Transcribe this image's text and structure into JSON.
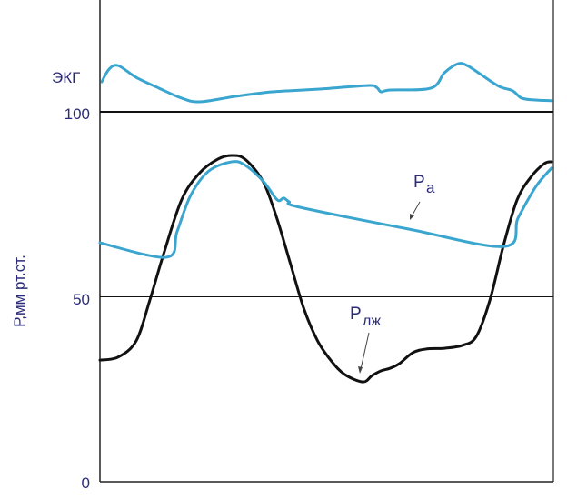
{
  "chart_data": {
    "type": "line",
    "title": "",
    "xlabel": "",
    "ylabel": "Р,мм рт.ст.",
    "ylim": [
      0,
      100
    ],
    "yticks": [
      "0",
      "50",
      "100"
    ],
    "ecg_label": "ЭКГ",
    "grid": "horizontal lines at 50 and 100",
    "colors": {
      "ecg": "#3aa6cf",
      "pa": "#3aa6cf",
      "plv": "#111111",
      "text": "#2b2b78"
    },
    "series": [
      {
        "name": "ЭКГ",
        "x": [
          0.4,
          2,
          4,
          8,
          13,
          18,
          22,
          30,
          38,
          48,
          59,
          61,
          62,
          64,
          73,
          76,
          79,
          81,
          84,
          88,
          91,
          93,
          96,
          99.6
        ],
        "y": [
          108.1,
          111.5,
          112.5,
          109.3,
          106.4,
          103.7,
          102.7,
          104.2,
          105.4,
          106.1,
          107.1,
          106.6,
          105.4,
          105.9,
          106.4,
          110.6,
          113.0,
          112.5,
          110.1,
          106.9,
          105.7,
          103.7,
          103.2,
          103.0
        ]
      },
      {
        "name": "Pa",
        "label_main": "P",
        "label_sub": "a",
        "x": [
          0,
          14.7,
          17.0,
          20.0,
          24.0,
          29.1,
          32.1,
          36.1,
          39.1,
          40.5,
          41.7,
          44.1,
          68.1,
          89.2,
          92.2,
          96.2,
          99.6
        ],
        "y": [
          64.6,
          60.7,
          67.6,
          77.4,
          84.0,
          86.5,
          85.5,
          81.1,
          76.2,
          76.7,
          75.7,
          74.2,
          68.3,
          63.6,
          71.3,
          79.9,
          84.8
        ]
      },
      {
        "name": "Pлж",
        "label_main": "P",
        "label_sub": "лж",
        "x": [
          0,
          4,
          8,
          11,
          14,
          18,
          22,
          26,
          29,
          32,
          36,
          39,
          42,
          45,
          48,
          51,
          54,
          58,
          60,
          62,
          64,
          66,
          69,
          72,
          76,
          80,
          83,
          86,
          89,
          92,
          95,
          98,
          99.6
        ],
        "y": [
          32.9,
          33.7,
          38.1,
          49.1,
          61.4,
          76.2,
          83.5,
          87.2,
          88.2,
          87.2,
          81.1,
          71.3,
          59.0,
          46.7,
          38.1,
          32.7,
          29.0,
          27.0,
          28.7,
          30.0,
          30.7,
          31.9,
          34.9,
          35.9,
          36.1,
          36.9,
          39.3,
          49.1,
          63.9,
          76.2,
          82.3,
          86.0,
          86.5
        ]
      }
    ]
  }
}
